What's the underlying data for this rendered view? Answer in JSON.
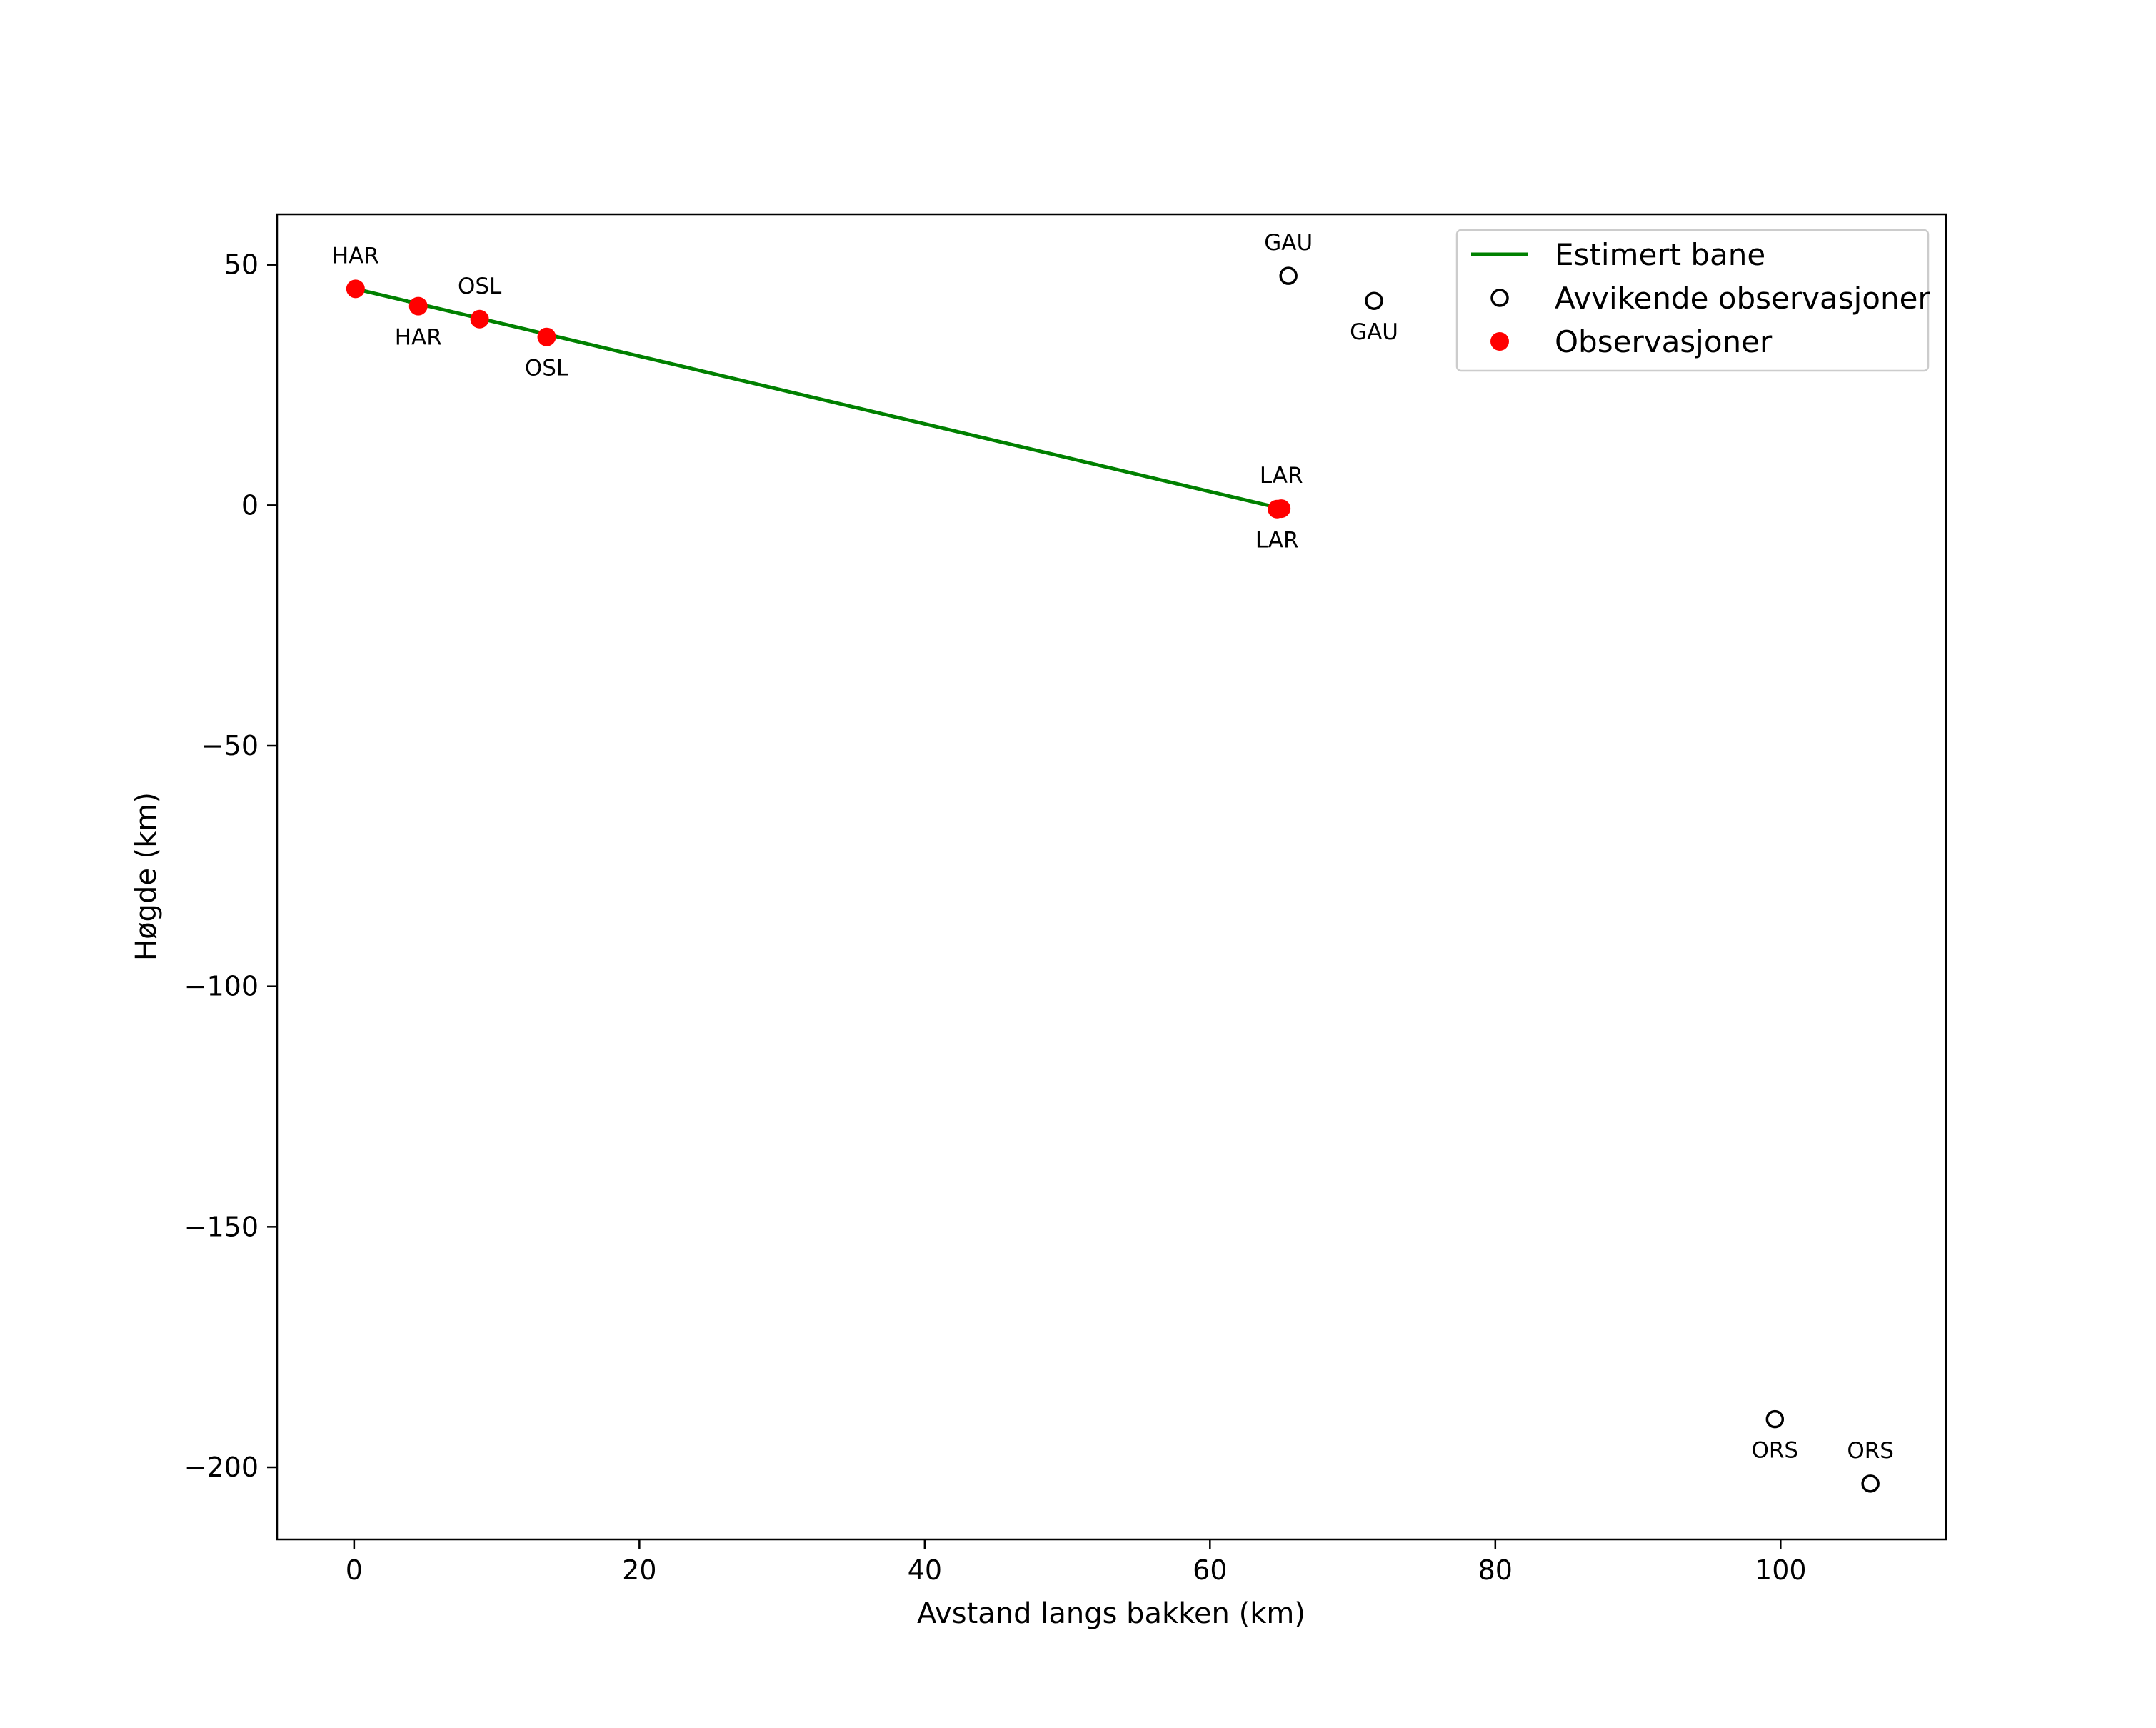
{
  "chart_data": {
    "type": "scatter",
    "xlabel": "Avstand langs bakken (km)",
    "ylabel": "Høgde (km)",
    "xlim": [
      -5.4,
      111.6
    ],
    "ylim": [
      -215,
      60.5
    ],
    "xticks": [
      0,
      20,
      40,
      60,
      80,
      100
    ],
    "yticks": [
      50,
      0,
      -50,
      -100,
      -150,
      -200
    ],
    "tick_labels": {
      "x": [
        "0",
        "20",
        "40",
        "60",
        "80",
        "100"
      ],
      "y": [
        "50",
        "0",
        "−50",
        "−100",
        "−150",
        "−200"
      ]
    },
    "legend_position": "top-right",
    "grid": false,
    "series": [
      {
        "name": "Estimert bane",
        "kind": "line",
        "color": "#008000",
        "x": [
          0.1,
          64.9
        ],
        "y": [
          45.0,
          -0.6
        ]
      },
      {
        "name": "Avvikende observasjoner",
        "kind": "scatter-open",
        "color": "#000000",
        "points": [
          {
            "x": 65.5,
            "y": 47.7,
            "label": "GAU",
            "label_pos": "above"
          },
          {
            "x": 71.5,
            "y": 42.5,
            "label": "GAU",
            "label_pos": "below"
          },
          {
            "x": 99.6,
            "y": -190.0,
            "label": "ORS",
            "label_pos": "below"
          },
          {
            "x": 106.3,
            "y": -203.4,
            "label": "ORS",
            "label_pos": "above"
          }
        ]
      },
      {
        "name": "Observasjoner",
        "kind": "scatter-filled",
        "color": "#ff0000",
        "points": [
          {
            "x": 0.1,
            "y": 45.0,
            "label": "HAR",
            "label_pos": "above"
          },
          {
            "x": 4.5,
            "y": 41.4,
            "label": "HAR",
            "label_pos": "below"
          },
          {
            "x": 8.8,
            "y": 38.7,
            "label": "OSL",
            "label_pos": "above"
          },
          {
            "x": 13.5,
            "y": 35.0,
            "label": "OSL",
            "label_pos": "below"
          },
          {
            "x": 64.7,
            "y": -0.8,
            "label": "LAR",
            "label_pos": "below"
          },
          {
            "x": 65.0,
            "y": -0.7,
            "label": "LAR",
            "label_pos": "above"
          }
        ]
      }
    ]
  }
}
